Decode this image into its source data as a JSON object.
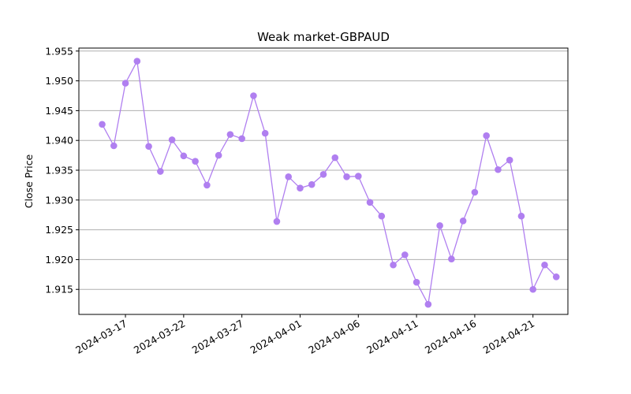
{
  "chart_data": {
    "type": "line",
    "title": "Weak market-GBPAUD",
    "xlabel": "",
    "ylabel": "Close Price",
    "x_ticks": [
      "2024-03-17",
      "2024-03-22",
      "2024-03-27",
      "2024-04-01",
      "2024-04-06",
      "2024-04-11",
      "2024-04-16",
      "2024-04-21"
    ],
    "y_ticks": [
      "1.915",
      "1.920",
      "1.925",
      "1.930",
      "1.935",
      "1.940",
      "1.945",
      "1.950",
      "1.955"
    ],
    "ylim": [
      1.9108,
      1.9555
    ],
    "xlim": [
      "2024-03-13",
      "2024-04-24"
    ],
    "grid": "horizontal",
    "color": "#b07ff0",
    "series": [
      {
        "x": [
          "2024-03-15",
          "2024-03-16",
          "2024-03-17",
          "2024-03-18",
          "2024-03-19",
          "2024-03-20",
          "2024-03-21",
          "2024-03-22",
          "2024-03-23",
          "2024-03-24",
          "2024-03-25",
          "2024-03-26",
          "2024-03-27",
          "2024-03-28",
          "2024-03-29",
          "2024-03-30",
          "2024-03-31",
          "2024-04-01",
          "2024-04-02",
          "2024-04-03",
          "2024-04-04",
          "2024-04-05",
          "2024-04-06",
          "2024-04-07",
          "2024-04-08",
          "2024-04-09",
          "2024-04-10",
          "2024-04-11",
          "2024-04-12",
          "2024-04-13",
          "2024-04-14",
          "2024-04-15",
          "2024-04-16",
          "2024-04-17",
          "2024-04-18",
          "2024-04-19",
          "2024-04-20",
          "2024-04-21",
          "2024-04-22",
          "2024-04-23"
        ],
        "values": [
          1.9427,
          1.9391,
          1.9496,
          1.9533,
          1.939,
          1.9348,
          1.9401,
          1.9374,
          1.9365,
          1.9325,
          1.9375,
          1.941,
          1.9403,
          1.9475,
          1.9412,
          1.9264,
          1.9339,
          1.932,
          1.9326,
          1.9343,
          1.9371,
          1.9339,
          1.934,
          1.9296,
          1.9273,
          1.9191,
          1.9208,
          1.9162,
          1.9125,
          1.9257,
          1.9201,
          1.9265,
          1.9313,
          1.9408,
          1.9351,
          1.9367,
          1.9273,
          1.915,
          1.9191,
          1.9171
        ]
      }
    ]
  }
}
